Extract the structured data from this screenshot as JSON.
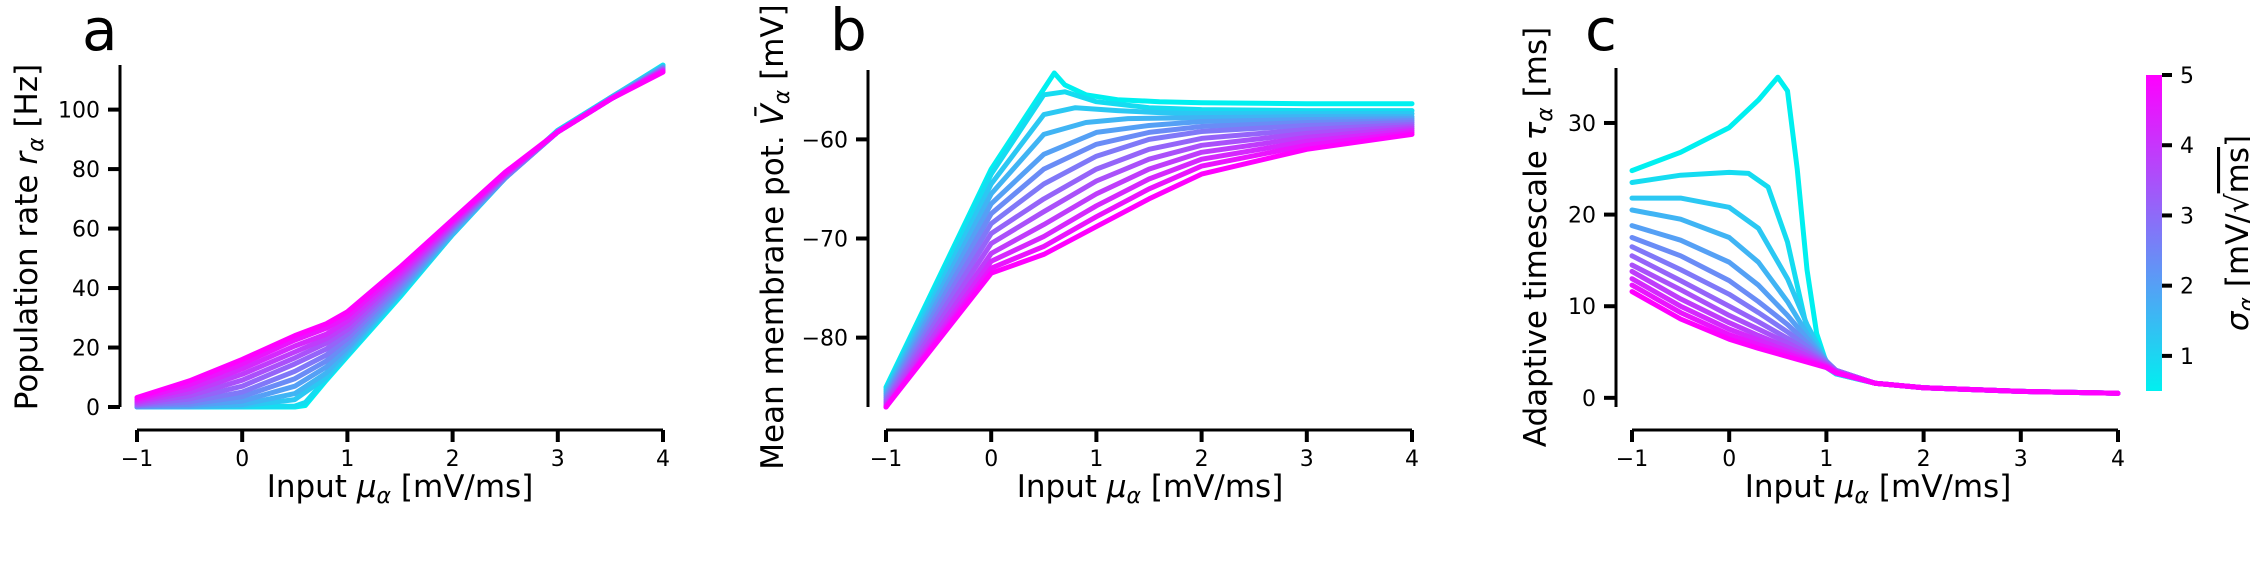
{
  "chart_data": [
    {
      "type": "line",
      "panel": "a",
      "xlabel": "Input μ_α [mV/ms]",
      "ylabel": "Population rate r_α [Hz]",
      "xlim": [
        -1,
        4
      ],
      "ylim": [
        0,
        115
      ],
      "xticks": [
        -1,
        0,
        1,
        2,
        3,
        4
      ],
      "yticks": [
        0,
        20,
        40,
        60,
        80,
        100
      ],
      "grid": false,
      "series": [
        {
          "sigma": 0.5,
          "x": [
            -1,
            0,
            0.5,
            0.6,
            0.8,
            1,
            1.5,
            2,
            2.5,
            3,
            3.5,
            4
          ],
          "y": [
            0,
            0,
            0,
            0.5,
            9,
            17,
            37,
            58,
            77,
            93,
            104,
            115
          ]
        },
        {
          "sigma": 0.875,
          "x": [
            -1,
            0,
            0.5,
            0.6,
            0.8,
            1,
            1.5,
            2,
            2.5,
            3,
            3.5,
            4
          ],
          "y": [
            0,
            0,
            0.3,
            1.5,
            9.5,
            17.5,
            37.5,
            58,
            77,
            93,
            104,
            114.8
          ]
        },
        {
          "sigma": 1.25,
          "x": [
            -1,
            -0.5,
            0,
            0.5,
            0.8,
            1,
            1.5,
            2,
            2.5,
            3,
            3.5,
            4
          ],
          "y": [
            0,
            0,
            0.3,
            2.5,
            10,
            18,
            38,
            58,
            77,
            93,
            104,
            114.6
          ]
        },
        {
          "sigma": 1.625,
          "x": [
            -1,
            -0.5,
            0,
            0.5,
            0.8,
            1,
            1.5,
            2,
            2.5,
            3,
            3.5,
            4
          ],
          "y": [
            0,
            0.1,
            0.8,
            4.5,
            11.5,
            19,
            38.5,
            58.5,
            77,
            92.5,
            104,
            114.4
          ]
        },
        {
          "sigma": 2.0,
          "x": [
            -1,
            -0.5,
            0,
            0.5,
            0.8,
            1,
            1.5,
            2,
            2.5,
            3,
            3.5,
            4
          ],
          "y": [
            0.1,
            0.4,
            2,
            7,
            13.5,
            20,
            39,
            59,
            77,
            92.5,
            103.5,
            114.2
          ]
        },
        {
          "sigma": 2.375,
          "x": [
            -1,
            -0.5,
            0,
            0.5,
            0.8,
            1,
            1.5,
            2,
            2.5,
            3,
            3.5,
            4
          ],
          "y": [
            0.2,
            0.9,
            3.5,
            9.5,
            15.5,
            21.5,
            40,
            59.5,
            77,
            92.5,
            103.5,
            114
          ]
        },
        {
          "sigma": 2.75,
          "x": [
            -1,
            -0.5,
            0,
            0.5,
            0.8,
            1,
            1.5,
            2,
            2.5,
            3,
            3.5,
            4
          ],
          "y": [
            0.4,
            1.7,
            5,
            12,
            17.5,
            23,
            41,
            60,
            77.5,
            92.5,
            103.5,
            113.8
          ]
        },
        {
          "sigma": 3.125,
          "x": [
            -1,
            -0.5,
            0,
            0.5,
            0.8,
            1,
            1.5,
            2,
            2.5,
            3,
            3.5,
            4
          ],
          "y": [
            0.7,
            2.7,
            7,
            14.5,
            19.5,
            24.5,
            42,
            60.5,
            77.5,
            92.5,
            103.5,
            113.6
          ]
        },
        {
          "sigma": 3.5,
          "x": [
            -1,
            -0.5,
            0,
            0.5,
            0.8,
            1,
            1.5,
            2,
            2.5,
            3,
            3.5,
            4
          ],
          "y": [
            1,
            3.8,
            9,
            16.5,
            21.5,
            26,
            43,
            61,
            78,
            92.5,
            103.5,
            113.4
          ]
        },
        {
          "sigma": 3.875,
          "x": [
            -1,
            -0.5,
            0,
            0.5,
            0.8,
            1,
            1.5,
            2,
            2.5,
            3,
            3.5,
            4
          ],
          "y": [
            1.5,
            5,
            11,
            18.5,
            23,
            27.5,
            44,
            61.5,
            78,
            92.5,
            103.5,
            113.2
          ]
        },
        {
          "sigma": 4.25,
          "x": [
            -1,
            -0.5,
            0,
            0.5,
            0.8,
            1,
            1.5,
            2,
            2.5,
            3,
            3.5,
            4
          ],
          "y": [
            2,
            6.2,
            12.8,
            20.5,
            24.5,
            29,
            45,
            62,
            78.5,
            92.5,
            103.5,
            113
          ]
        },
        {
          "sigma": 4.625,
          "x": [
            -1,
            -0.5,
            0,
            0.5,
            0.8,
            1,
            1.5,
            2,
            2.5,
            3,
            3.5,
            4
          ],
          "y": [
            2.6,
            7.5,
            14.5,
            22.5,
            26.5,
            30.5,
            46,
            62.5,
            78.5,
            92.5,
            103.5,
            112.8
          ]
        },
        {
          "sigma": 5.0,
          "x": [
            -1,
            -0.5,
            0,
            0.5,
            0.8,
            1,
            1.5,
            2,
            2.5,
            3,
            3.5,
            4
          ],
          "y": [
            3.2,
            8.8,
            16,
            24,
            28,
            32,
            47,
            63,
            79,
            92.5,
            103.5,
            112.6
          ]
        }
      ]
    },
    {
      "type": "line",
      "panel": "b",
      "xlabel": "Input μ_α [mV/ms]",
      "ylabel": "Mean membrane pot. V̄_α [mV]",
      "xlim": [
        -1,
        4
      ],
      "ylim": [
        -87,
        -53
      ],
      "xticks": [
        -1,
        0,
        1,
        2,
        3,
        4
      ],
      "yticks": [
        -80,
        -70,
        -60
      ],
      "grid": false,
      "series": [
        {
          "sigma": 0.5,
          "x": [
            -1,
            0,
            0.6,
            0.7,
            0.9,
            1.2,
            1.6,
            2,
            3,
            4
          ],
          "y": [
            -85,
            -63,
            -53.3,
            -54.5,
            -55.5,
            -56,
            -56.2,
            -56.3,
            -56.4,
            -56.4
          ]
        },
        {
          "sigma": 0.875,
          "x": [
            -1,
            0,
            0.5,
            0.7,
            1,
            1.5,
            2,
            3,
            4
          ],
          "y": [
            -85.2,
            -63.5,
            -55.5,
            -55.2,
            -56.2,
            -56.8,
            -57,
            -57.1,
            -57.1
          ]
        },
        {
          "sigma": 1.25,
          "x": [
            -1,
            0,
            0.5,
            0.8,
            1.2,
            1.6,
            2,
            3,
            4
          ],
          "y": [
            -85.4,
            -64.5,
            -57.5,
            -56.8,
            -57.1,
            -57.3,
            -57.4,
            -57.4,
            -57.4
          ]
        },
        {
          "sigma": 1.625,
          "x": [
            -1,
            0,
            0.5,
            0.9,
            1.3,
            2,
            3,
            4
          ],
          "y": [
            -85.6,
            -65.5,
            -59.5,
            -58.3,
            -57.9,
            -57.8,
            -57.7,
            -57.7
          ]
        },
        {
          "sigma": 2.0,
          "x": [
            -1,
            0,
            0.5,
            1,
            1.5,
            2,
            3,
            4
          ],
          "y": [
            -85.8,
            -66.5,
            -61.5,
            -59.3,
            -58.6,
            -58.2,
            -58,
            -57.9
          ]
        },
        {
          "sigma": 2.375,
          "x": [
            -1,
            0,
            0.5,
            1,
            1.5,
            2,
            3,
            4
          ],
          "y": [
            -86,
            -67.5,
            -63,
            -60.5,
            -59.3,
            -58.7,
            -58.3,
            -58.1
          ]
        },
        {
          "sigma": 2.75,
          "x": [
            -1,
            0,
            0.5,
            1,
            1.5,
            2,
            3,
            4
          ],
          "y": [
            -86.2,
            -68.5,
            -64.5,
            -61.7,
            -60,
            -59.2,
            -58.6,
            -58.3
          ]
        },
        {
          "sigma": 3.125,
          "x": [
            -1,
            0,
            0.5,
            1,
            1.5,
            2,
            3,
            4
          ],
          "y": [
            -86.4,
            -69.5,
            -66,
            -63,
            -61,
            -59.9,
            -59,
            -58.5
          ]
        },
        {
          "sigma": 3.5,
          "x": [
            -1,
            0,
            0.5,
            1,
            1.5,
            2,
            3,
            4
          ],
          "y": [
            -86.6,
            -70.5,
            -67.3,
            -64.2,
            -62,
            -60.6,
            -59.4,
            -58.7
          ]
        },
        {
          "sigma": 3.875,
          "x": [
            -1,
            0,
            0.5,
            1,
            1.5,
            2,
            3,
            4
          ],
          "y": [
            -86.8,
            -71.5,
            -68.6,
            -65.5,
            -63,
            -61.3,
            -59.8,
            -58.9
          ]
        },
        {
          "sigma": 4.25,
          "x": [
            -1,
            0,
            0.5,
            1,
            1.5,
            2,
            3,
            4
          ],
          "y": [
            -87,
            -72.3,
            -69.8,
            -66.7,
            -64,
            -62,
            -60.2,
            -59.1
          ]
        },
        {
          "sigma": 4.625,
          "x": [
            -1,
            0,
            0.5,
            1,
            1.5,
            2,
            3,
            4
          ],
          "y": [
            -87,
            -73,
            -70.8,
            -67.8,
            -65,
            -62.7,
            -60.6,
            -59.3
          ]
        },
        {
          "sigma": 5.0,
          "x": [
            -1,
            0,
            0.5,
            1,
            1.5,
            2,
            3,
            4
          ],
          "y": [
            -87,
            -73.5,
            -71.6,
            -68.8,
            -66,
            -63.5,
            -61,
            -59.5
          ]
        }
      ]
    },
    {
      "type": "line",
      "panel": "c",
      "xlabel": "Input μ_α [mV/ms]",
      "ylabel": "Adaptive timescale τ_α [ms]",
      "xlim": [
        -1,
        4
      ],
      "ylim": [
        -1,
        36
      ],
      "xticks": [
        -1,
        0,
        1,
        2,
        3,
        4
      ],
      "yticks": [
        0,
        10,
        20,
        30
      ],
      "grid": false,
      "series": [
        {
          "sigma": 0.5,
          "x": [
            -1,
            -0.5,
            0,
            0.3,
            0.5,
            0.6,
            0.7,
            0.8,
            0.9,
            1,
            1.1,
            1.5,
            2,
            3,
            4
          ],
          "y": [
            24.8,
            26.8,
            29.5,
            32.5,
            35,
            33.5,
            25,
            14,
            7,
            3.8,
            2.6,
            1.6,
            1.1,
            0.7,
            0.5
          ]
        },
        {
          "sigma": 0.875,
          "x": [
            -1,
            -0.5,
            0,
            0.2,
            0.4,
            0.6,
            0.8,
            1,
            1.1,
            1.5,
            2,
            3,
            4
          ],
          "y": [
            23.5,
            24.3,
            24.6,
            24.5,
            23,
            17,
            7.5,
            3.3,
            2.6,
            1.6,
            1.1,
            0.7,
            0.5
          ]
        },
        {
          "sigma": 1.25,
          "x": [
            -1,
            -0.5,
            0,
            0.3,
            0.6,
            0.8,
            1,
            1.1,
            1.5,
            2,
            3,
            4
          ],
          "y": [
            21.8,
            21.8,
            20.8,
            18.5,
            13,
            8,
            4,
            2.8,
            1.6,
            1.1,
            0.7,
            0.5
          ]
        },
        {
          "sigma": 1.625,
          "x": [
            -1,
            -0.5,
            0,
            0.3,
            0.6,
            0.8,
            1,
            1.1,
            1.5,
            2,
            3,
            4
          ],
          "y": [
            20.5,
            19.5,
            17.5,
            14.8,
            10.5,
            7,
            4,
            2.9,
            1.6,
            1.1,
            0.7,
            0.5
          ]
        },
        {
          "sigma": 2.0,
          "x": [
            -1,
            -0.5,
            0,
            0.3,
            0.6,
            0.8,
            1,
            1.1,
            1.5,
            2,
            3,
            4
          ],
          "y": [
            18.8,
            17.2,
            14.8,
            12.3,
            9,
            6.5,
            4,
            3,
            1.6,
            1.1,
            0.7,
            0.5
          ]
        },
        {
          "sigma": 2.375,
          "x": [
            -1,
            -0.5,
            0,
            0.3,
            0.6,
            0.8,
            1,
            1.1,
            1.5,
            2,
            3,
            4
          ],
          "y": [
            17.5,
            15.5,
            12.8,
            10.5,
            8,
            6,
            4,
            3,
            1.6,
            1.1,
            0.7,
            0.5
          ]
        },
        {
          "sigma": 2.75,
          "x": [
            -1,
            -0.5,
            0,
            0.3,
            0.6,
            0.8,
            1,
            1.1,
            1.5,
            2,
            3,
            4
          ],
          "y": [
            16.5,
            14,
            11.3,
            9.3,
            7.2,
            5.6,
            3.9,
            3,
            1.6,
            1.1,
            0.7,
            0.5
          ]
        },
        {
          "sigma": 3.125,
          "x": [
            -1,
            -0.5,
            0,
            0.3,
            0.6,
            0.8,
            1,
            1.1,
            1.5,
            2,
            3,
            4
          ],
          "y": [
            15.5,
            12.8,
            10,
            8.3,
            6.5,
            5.2,
            3.8,
            3,
            1.6,
            1.1,
            0.7,
            0.5
          ]
        },
        {
          "sigma": 3.5,
          "x": [
            -1,
            -0.5,
            0,
            0.3,
            0.6,
            0.8,
            1,
            1.1,
            1.5,
            2,
            3,
            4
          ],
          "y": [
            14.5,
            11.8,
            9,
            7.5,
            6,
            4.9,
            3.7,
            2.9,
            1.6,
            1.1,
            0.7,
            0.5
          ]
        },
        {
          "sigma": 3.875,
          "x": [
            -1,
            -0.5,
            0,
            0.3,
            0.6,
            0.8,
            1,
            1.1,
            1.5,
            2,
            3,
            4
          ],
          "y": [
            13.8,
            10.8,
            8.2,
            6.8,
            5.5,
            4.6,
            3.6,
            2.9,
            1.6,
            1.1,
            0.7,
            0.5
          ]
        },
        {
          "sigma": 4.25,
          "x": [
            -1,
            -0.5,
            0,
            0.3,
            0.6,
            0.8,
            1,
            1.1,
            1.5,
            2,
            3,
            4
          ],
          "y": [
            13,
            10,
            7.5,
            6.3,
            5.1,
            4.3,
            3.5,
            2.8,
            1.6,
            1.1,
            0.7,
            0.5
          ]
        },
        {
          "sigma": 4.625,
          "x": [
            -1,
            -0.5,
            0,
            0.3,
            0.6,
            0.8,
            1,
            1.1,
            1.5,
            2,
            3,
            4
          ],
          "y": [
            12.3,
            9.3,
            6.9,
            5.8,
            4.8,
            4.1,
            3.4,
            2.8,
            1.6,
            1.1,
            0.7,
            0.5
          ]
        },
        {
          "sigma": 5.0,
          "x": [
            -1,
            -0.5,
            0,
            0.3,
            0.6,
            0.8,
            1,
            1.1,
            1.5,
            2,
            3,
            4
          ],
          "y": [
            11.6,
            8.6,
            6.4,
            5.4,
            4.5,
            3.9,
            3.3,
            2.7,
            1.6,
            1.1,
            0.7,
            0.5
          ]
        }
      ]
    }
  ],
  "panel_letters": [
    "a",
    "b",
    "c"
  ],
  "colorbar": {
    "label": "σ_α [mV/√ms]",
    "min": 0.5,
    "max": 5,
    "ticks": [
      1,
      2,
      3,
      4,
      5
    ],
    "color_low": "#00f0f0",
    "color_high": "#ff00ff"
  }
}
